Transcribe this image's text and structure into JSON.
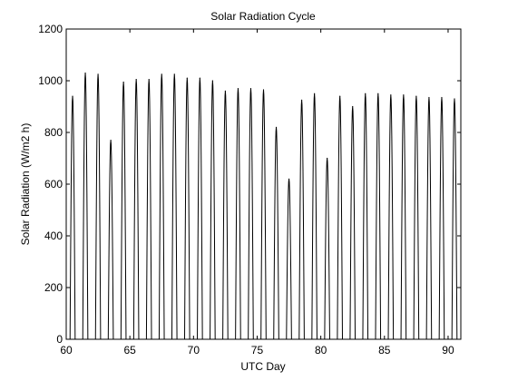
{
  "chart_data": {
    "type": "line",
    "title": "Solar Radiation Cycle",
    "xlabel": "UTC Day",
    "ylabel": "Solar Radiation (W/m2 h)",
    "xlim": [
      60,
      91
    ],
    "ylim": [
      0,
      1200
    ],
    "xticks": [
      60,
      65,
      70,
      75,
      80,
      85,
      90
    ],
    "yticks": [
      0,
      200,
      400,
      600,
      800,
      1000,
      1200
    ],
    "grid": false,
    "line_color": "#000000",
    "series": [
      {
        "daily_peaks": [
          {
            "day": 60.5,
            "peak": 940
          },
          {
            "day": 61.5,
            "peak": 1030
          },
          {
            "day": 62.5,
            "peak": 1025
          },
          {
            "day": 63.5,
            "peak": 770
          },
          {
            "day": 64.5,
            "peak": 995
          },
          {
            "day": 65.5,
            "peak": 1005
          },
          {
            "day": 66.5,
            "peak": 1005
          },
          {
            "day": 67.5,
            "peak": 1025
          },
          {
            "day": 68.5,
            "peak": 1025
          },
          {
            "day": 69.5,
            "peak": 1010
          },
          {
            "day": 70.5,
            "peak": 1010
          },
          {
            "day": 71.5,
            "peak": 1000
          },
          {
            "day": 72.5,
            "peak": 960
          },
          {
            "day": 73.5,
            "peak": 970
          },
          {
            "day": 74.5,
            "peak": 970
          },
          {
            "day": 75.5,
            "peak": 965
          },
          {
            "day": 76.5,
            "peak": 820
          },
          {
            "day": 77.5,
            "peak": 620
          },
          {
            "day": 78.5,
            "peak": 925
          },
          {
            "day": 79.5,
            "peak": 950
          },
          {
            "day": 80.5,
            "peak": 700
          },
          {
            "day": 81.5,
            "peak": 940
          },
          {
            "day": 82.5,
            "peak": 900
          },
          {
            "day": 83.5,
            "peak": 950
          },
          {
            "day": 84.5,
            "peak": 950
          },
          {
            "day": 85.5,
            "peak": 945
          },
          {
            "day": 86.5,
            "peak": 945
          },
          {
            "day": 87.5,
            "peak": 940
          },
          {
            "day": 88.5,
            "peak": 935
          },
          {
            "day": 89.5,
            "peak": 935
          },
          {
            "day": 90.5,
            "peak": 930
          }
        ],
        "daylight_fraction": 0.4
      }
    ]
  }
}
